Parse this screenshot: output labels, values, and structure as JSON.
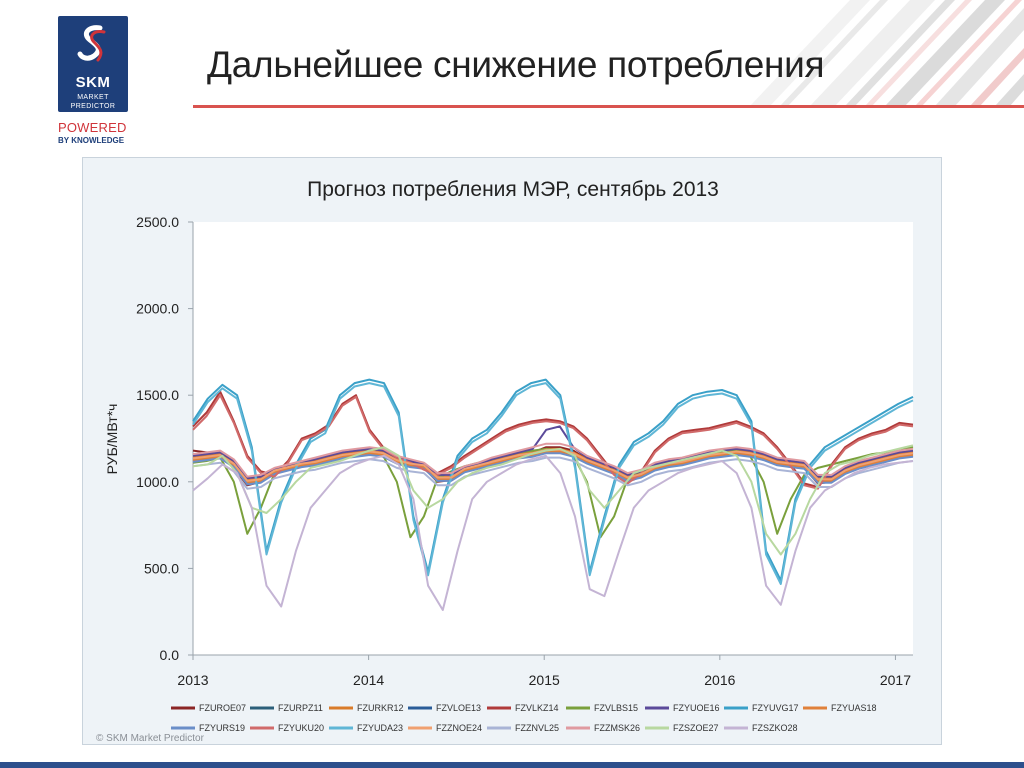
{
  "logo": {
    "brand": "SKM",
    "sub_line1": "MARKET",
    "sub_line2": "PREDICTOR",
    "powered": "POWERED",
    "by_knowledge": "BY KNOWLEDGE",
    "bg_color": "#1e3f7a",
    "accent_color": "#d0343a"
  },
  "page": {
    "title": "Дальнейшее снижение потребления",
    "copyright": "© SKM Market Predictor"
  },
  "chart_data": {
    "type": "line",
    "title": "Прогноз потребления МЭР, сентябрь 2013",
    "ylabel": "РУБ/МВт*ч",
    "xlabel": "",
    "ylim": [
      0,
      2500
    ],
    "xlim": [
      2013.0,
      2017.1
    ],
    "yticks": [
      "0.0",
      "500.0",
      "1000.0",
      "1500.0",
      "2000.0",
      "2500.0"
    ],
    "xticks": [
      "2013",
      "2014",
      "2015",
      "2016",
      "2017"
    ],
    "grid": false,
    "legend_position": "bottom",
    "series": [
      {
        "name": "FZUROE07",
        "color": "#8b2525",
        "y": [
          1180,
          1170,
          1150,
          1080,
          980,
          1000,
          1050,
          1080,
          1100,
          1110,
          1130,
          1150,
          1170,
          1180,
          1160,
          1120,
          1100,
          1080,
          1000,
          1010,
          1060,
          1090,
          1110,
          1130,
          1150,
          1170,
          1200,
          1200,
          1180,
          1130,
          1090,
          1050,
          1000,
          1030,
          1080,
          1100,
          1110,
          1130,
          1150,
          1170,
          1190,
          1180,
          1150,
          1120,
          1100,
          1080,
          990,
          1000,
          1050,
          1090,
          1110,
          1130,
          1160,
          1170
        ]
      },
      {
        "name": "FZURPZ11",
        "color": "#2c5f7a",
        "y": [
          1130,
          1140,
          1150,
          1100,
          1000,
          1010,
          1060,
          1080,
          1100,
          1110,
          1130,
          1150,
          1160,
          1170,
          1160,
          1120,
          1100,
          1090,
          1020,
          1020,
          1070,
          1090,
          1110,
          1130,
          1150,
          1160,
          1180,
          1180,
          1160,
          1120,
          1090,
          1060,
          1020,
          1040,
          1080,
          1100,
          1110,
          1130,
          1150,
          1160,
          1170,
          1160,
          1140,
          1110,
          1100,
          1090,
          1010,
          1010,
          1060,
          1090,
          1110,
          1130,
          1150,
          1160
        ]
      },
      {
        "name": "FZURKR12",
        "color": "#d97b2a",
        "y": [
          1140,
          1150,
          1160,
          1110,
          1010,
          1020,
          1060,
          1080,
          1100,
          1120,
          1140,
          1160,
          1170,
          1180,
          1170,
          1130,
          1110,
          1090,
          1030,
          1030,
          1070,
          1090,
          1120,
          1140,
          1160,
          1170,
          1190,
          1190,
          1170,
          1130,
          1100,
          1070,
          1030,
          1050,
          1090,
          1110,
          1120,
          1140,
          1160,
          1170,
          1180,
          1170,
          1150,
          1120,
          1110,
          1100,
          1020,
          1020,
          1070,
          1100,
          1120,
          1140,
          1160,
          1170
        ]
      },
      {
        "name": "FZVLOE13",
        "color": "#2a5c98",
        "y": [
          1120,
          1130,
          1140,
          1090,
          990,
          1000,
          1050,
          1070,
          1090,
          1100,
          1120,
          1140,
          1150,
          1160,
          1150,
          1110,
          1090,
          1080,
          1010,
          1010,
          1060,
          1080,
          1100,
          1120,
          1140,
          1150,
          1170,
          1170,
          1150,
          1110,
          1080,
          1050,
          1010,
          1030,
          1070,
          1090,
          1100,
          1120,
          1140,
          1150,
          1160,
          1150,
          1130,
          1100,
          1090,
          1080,
          1000,
          1000,
          1050,
          1080,
          1100,
          1120,
          1140,
          1150
        ]
      },
      {
        "name": "FZVLKZ14",
        "color": "#b03a3a",
        "y": [
          1320,
          1400,
          1520,
          1350,
          1150,
          1060,
          1040,
          1120,
          1250,
          1280,
          1330,
          1450,
          1500,
          1300,
          1200,
          1150,
          1120,
          1080,
          1050,
          1090,
          1150,
          1200,
          1250,
          1300,
          1330,
          1350,
          1360,
          1350,
          1320,
          1250,
          1150,
          1050,
          1000,
          1060,
          1180,
          1250,
          1290,
          1300,
          1310,
          1330,
          1350,
          1320,
          1280,
          1200,
          1100,
          990,
          970,
          1100,
          1200,
          1250,
          1280,
          1300,
          1340,
          1330
        ]
      },
      {
        "name": "FZVLBS15",
        "color": "#7aa03c",
        "y": [
          1110,
          1120,
          1140,
          1000,
          700,
          850,
          1050,
          1070,
          1100,
          1110,
          1130,
          1150,
          1160,
          1170,
          1150,
          1000,
          680,
          800,
          1020,
          1060,
          1090,
          1110,
          1130,
          1150,
          1170,
          1180,
          1190,
          1180,
          1150,
          1000,
          680,
          800,
          1020,
          1050,
          1080,
          1100,
          1110,
          1130,
          1150,
          1170,
          1180,
          1150,
          1000,
          700,
          900,
          1040,
          1080,
          1100,
          1120,
          1140,
          1160,
          1170,
          1180,
          1200
        ]
      },
      {
        "name": "FZYUOE16",
        "color": "#5b4a9a",
        "y": [
          1150,
          1160,
          1170,
          1120,
          1020,
          1030,
          1070,
          1090,
          1110,
          1130,
          1150,
          1170,
          1180,
          1190,
          1180,
          1140,
          1120,
          1100,
          1040,
          1040,
          1080,
          1100,
          1130,
          1150,
          1170,
          1190,
          1300,
          1320,
          1200,
          1140,
          1110,
          1080,
          1040,
          1060,
          1100,
          1120,
          1130,
          1150,
          1170,
          1180,
          1190,
          1180,
          1160,
          1130,
          1120,
          1110,
          1030,
          1030,
          1080,
          1110,
          1130,
          1150,
          1170,
          1180
        ]
      },
      {
        "name": "FZYUVG17",
        "color": "#3aa0c8",
        "y": [
          1350,
          1480,
          1560,
          1500,
          1200,
          600,
          900,
          1100,
          1250,
          1300,
          1500,
          1570,
          1590,
          1570,
          1400,
          800,
          480,
          900,
          1150,
          1250,
          1300,
          1400,
          1520,
          1570,
          1590,
          1500,
          1100,
          480,
          800,
          1100,
          1230,
          1280,
          1350,
          1450,
          1500,
          1520,
          1530,
          1500,
          1350,
          600,
          430,
          900,
          1100,
          1200,
          1250,
          1300,
          1350,
          1400,
          1450,
          1490
        ]
      },
      {
        "name": "FZYUAS18",
        "color": "#e0803a",
        "y": [
          1125,
          1135,
          1145,
          1095,
          995,
          1005,
          1055,
          1075,
          1095,
          1105,
          1125,
          1145,
          1155,
          1165,
          1155,
          1115,
          1095,
          1085,
          1015,
          1015,
          1065,
          1085,
          1105,
          1125,
          1145,
          1155,
          1175,
          1175,
          1155,
          1115,
          1085,
          1055,
          1015,
          1035,
          1075,
          1095,
          1105,
          1125,
          1145,
          1155,
          1165,
          1155,
          1135,
          1105,
          1095,
          1085,
          1005,
          1005,
          1055,
          1085,
          1105,
          1125,
          1145,
          1155
        ]
      },
      {
        "name": "FZYURS19",
        "color": "#6a8ec8",
        "y": [
          1115,
          1125,
          1135,
          1085,
          985,
          995,
          1045,
          1065,
          1085,
          1095,
          1115,
          1135,
          1145,
          1155,
          1145,
          1105,
          1085,
          1075,
          1005,
          1005,
          1055,
          1075,
          1095,
          1115,
          1135,
          1145,
          1165,
          1165,
          1145,
          1105,
          1075,
          1045,
          1005,
          1025,
          1065,
          1085,
          1095,
          1115,
          1135,
          1145,
          1155,
          1145,
          1125,
          1095,
          1085,
          1075,
          995,
          995,
          1045,
          1075,
          1095,
          1115,
          1135,
          1145
        ]
      },
      {
        "name": "FZYUKU20",
        "color": "#d06a6a",
        "y": [
          1300,
          1380,
          1500,
          1340,
          1140,
          1050,
          1030,
          1110,
          1240,
          1270,
          1320,
          1440,
          1490,
          1290,
          1190,
          1140,
          1110,
          1070,
          1040,
          1080,
          1140,
          1190,
          1240,
          1290,
          1320,
          1340,
          1350,
          1340,
          1310,
          1240,
          1140,
          1040,
          990,
          1050,
          1170,
          1240,
          1280,
          1290,
          1300,
          1320,
          1340,
          1310,
          1270,
          1190,
          1090,
          980,
          960,
          1090,
          1190,
          1240,
          1270,
          1290,
          1330,
          1320
        ]
      },
      {
        "name": "FZYUDA23",
        "color": "#5fb6d6",
        "y": [
          1330,
          1460,
          1540,
          1480,
          1180,
          580,
          880,
          1080,
          1230,
          1280,
          1480,
          1550,
          1570,
          1550,
          1380,
          780,
          460,
          880,
          1130,
          1230,
          1280,
          1380,
          1500,
          1550,
          1570,
          1480,
          1080,
          460,
          780,
          1080,
          1210,
          1260,
          1330,
          1430,
          1480,
          1500,
          1510,
          1480,
          1330,
          580,
          410,
          880,
          1080,
          1180,
          1230,
          1280,
          1330,
          1380,
          1430,
          1470
        ]
      },
      {
        "name": "FZZNOE24",
        "color": "#f0a070",
        "y": [
          1135,
          1145,
          1155,
          1105,
          1005,
          1015,
          1065,
          1085,
          1105,
          1115,
          1135,
          1155,
          1165,
          1175,
          1165,
          1125,
          1105,
          1095,
          1025,
          1025,
          1075,
          1095,
          1115,
          1135,
          1155,
          1165,
          1185,
          1185,
          1165,
          1125,
          1095,
          1065,
          1025,
          1045,
          1085,
          1105,
          1115,
          1135,
          1155,
          1165,
          1175,
          1165,
          1145,
          1115,
          1105,
          1095,
          1015,
          1015,
          1065,
          1095,
          1115,
          1135,
          1155,
          1165
        ]
      },
      {
        "name": "FZZNVL25",
        "color": "#a9b4d6",
        "y": [
          1090,
          1100,
          1110,
          1060,
          960,
          970,
          1020,
          1040,
          1060,
          1070,
          1090,
          1110,
          1120,
          1130,
          1120,
          1080,
          1060,
          1050,
          980,
          980,
          1030,
          1050,
          1070,
          1090,
          1110,
          1120,
          1140,
          1140,
          1120,
          1080,
          1050,
          1020,
          980,
          1000,
          1040,
          1060,
          1070,
          1090,
          1110,
          1120,
          1130,
          1120,
          1100,
          1070,
          1060,
          1050,
          970,
          970,
          1020,
          1050,
          1070,
          1090,
          1110,
          1120
        ]
      },
      {
        "name": "FZZMSK26",
        "color": "#e09aa0",
        "y": [
          1160,
          1170,
          1180,
          1130,
          1030,
          1040,
          1080,
          1100,
          1120,
          1140,
          1160,
          1180,
          1190,
          1200,
          1190,
          1150,
          1130,
          1110,
          1050,
          1050,
          1090,
          1110,
          1140,
          1160,
          1180,
          1200,
          1220,
          1220,
          1200,
          1150,
          1120,
          1090,
          1050,
          1070,
          1110,
          1130,
          1140,
          1160,
          1180,
          1190,
          1200,
          1190,
          1170,
          1140,
          1130,
          1120,
          1040,
          1040,
          1090,
          1120,
          1140,
          1160,
          1180,
          1190
        ]
      },
      {
        "name": "FZSZOE27",
        "color": "#b8d8a0",
        "y": [
          1090,
          1100,
          1150,
          1050,
          850,
          820,
          900,
          1000,
          1080,
          1100,
          1120,
          1150,
          1180,
          1200,
          1150,
          950,
          850,
          900,
          1000,
          1050,
          1080,
          1100,
          1130,
          1160,
          1180,
          1190,
          1150,
          950,
          850,
          950,
          1050,
          1080,
          1100,
          1120,
          1140,
          1160,
          1180,
          1150,
          1000,
          700,
          580,
          700,
          900,
          1050,
          1100,
          1120,
          1150,
          1170,
          1190,
          1210
        ]
      },
      {
        "name": "FZSZKO28",
        "color": "#c4b4d4",
        "y": [
          950,
          1020,
          1100,
          1050,
          850,
          400,
          280,
          600,
          850,
          950,
          1050,
          1100,
          1130,
          1150,
          1100,
          900,
          400,
          260,
          600,
          900,
          1000,
          1050,
          1100,
          1130,
          1150,
          1050,
          800,
          380,
          340,
          600,
          850,
          950,
          1000,
          1050,
          1080,
          1100,
          1120,
          1050,
          850,
          400,
          290,
          600,
          850,
          950,
          1000,
          1050,
          1080,
          1100,
          1110,
          1120
        ]
      }
    ]
  }
}
